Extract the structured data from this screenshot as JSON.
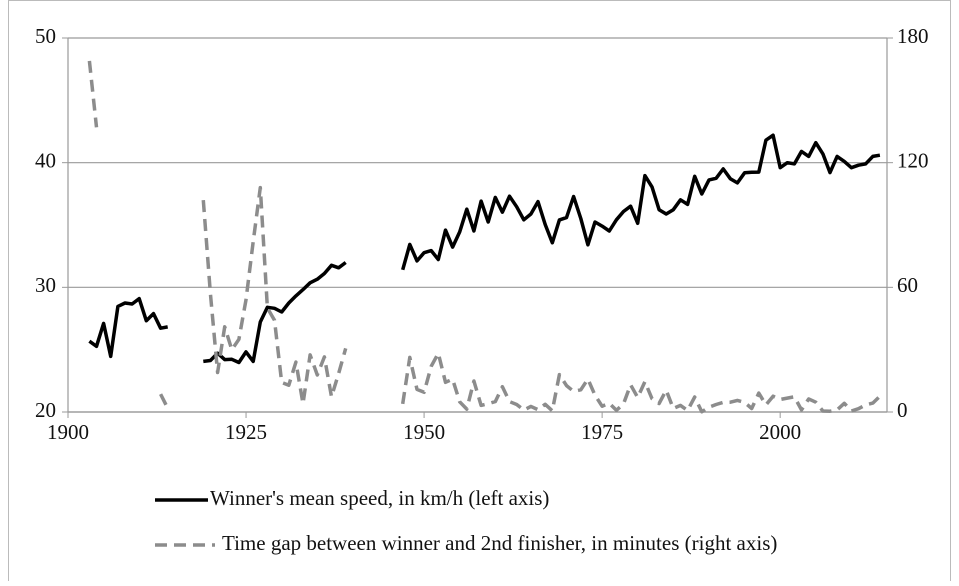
{
  "chart_data": {
    "type": "line",
    "x": [
      1903,
      1904,
      1905,
      1906,
      1907,
      1908,
      1909,
      1910,
      1911,
      1912,
      1913,
      1914,
      1915,
      1916,
      1917,
      1918,
      1919,
      1920,
      1921,
      1922,
      1923,
      1924,
      1925,
      1926,
      1927,
      1928,
      1929,
      1930,
      1931,
      1932,
      1933,
      1934,
      1935,
      1936,
      1937,
      1938,
      1939,
      1940,
      1941,
      1942,
      1943,
      1944,
      1945,
      1946,
      1947,
      1948,
      1949,
      1950,
      1951,
      1952,
      1953,
      1954,
      1955,
      1956,
      1957,
      1958,
      1959,
      1960,
      1961,
      1962,
      1963,
      1964,
      1965,
      1966,
      1967,
      1968,
      1969,
      1970,
      1971,
      1972,
      1973,
      1974,
      1975,
      1976,
      1977,
      1978,
      1979,
      1980,
      1981,
      1982,
      1983,
      1984,
      1985,
      1986,
      1987,
      1988,
      1989,
      1990,
      1991,
      1992,
      1993,
      1994,
      1995,
      1996,
      1997,
      1998,
      1999,
      2000,
      2001,
      2002,
      2003,
      2004,
      2005,
      2006,
      2007,
      2008,
      2009,
      2010,
      2011,
      2012,
      2013,
      2014
    ],
    "series": [
      {
        "name": "Winner's mean speed, in km/h (left axis)",
        "color": "#000000",
        "dash": false,
        "values": [
          25.68,
          25.27,
          27.11,
          24.46,
          28.47,
          28.74,
          28.66,
          29.1,
          27.32,
          27.89,
          26.72,
          26.83,
          null,
          null,
          null,
          null,
          24.06,
          24.13,
          24.72,
          24.2,
          24.23,
          23.97,
          24.82,
          24.06,
          27.22,
          28.4,
          28.32,
          28.02,
          28.74,
          29.31,
          29.82,
          30.36,
          30.65,
          31.11,
          31.77,
          31.57,
          31.99,
          null,
          null,
          null,
          null,
          null,
          null,
          null,
          31.41,
          33.44,
          32.12,
          32.78,
          32.95,
          32.23,
          34.59,
          33.23,
          34.45,
          36.27,
          34.52,
          36.92,
          35.24,
          37.21,
          36.03,
          37.31,
          36.46,
          35.42,
          35.88,
          36.88,
          35.04,
          33.57,
          35.41,
          35.59,
          37.29,
          35.52,
          33.41,
          35.24,
          34.91,
          34.52,
          35.42,
          36.08,
          36.51,
          35.14,
          38.96,
          38.06,
          36.23,
          35.88,
          36.23,
          37.02,
          36.65,
          38.91,
          37.49,
          38.62,
          38.75,
          39.5,
          38.71,
          38.38,
          39.19,
          39.23,
          39.24,
          41.8,
          42.2,
          39.6,
          40.0,
          39.9,
          40.9,
          40.5,
          41.6,
          40.7,
          39.2,
          40.5,
          40.1,
          39.6,
          39.8,
          39.9,
          40.5,
          40.6
        ]
      },
      {
        "name": "Time gap between winner and 2nd finisher, in minutes (right axis)",
        "color": "#8c8c8c",
        "dash": true,
        "axis": "y2",
        "values": [
          169,
          137,
          null,
          null,
          null,
          null,
          null,
          null,
          null,
          null,
          8.6,
          1.8,
          null,
          null,
          null,
          null,
          102,
          57,
          19,
          41,
          30,
          35,
          54,
          82,
          108,
          50,
          44.2,
          14.2,
          12.9,
          24.0,
          4.0,
          27.5,
          17.8,
          26.5,
          7.3,
          18.5,
          30.6,
          null,
          null,
          null,
          null,
          null,
          null,
          null,
          3.9,
          26.3,
          10.9,
          9.5,
          22.0,
          28.3,
          14.3,
          15.8,
          4.9,
          1.4,
          14.9,
          3.2,
          4.0,
          5.0,
          12.2,
          5.0,
          3.6,
          0.9,
          2.7,
          1.1,
          3.7,
          0.6,
          18,
          12.7,
          9.9,
          10.7,
          15.9,
          8.1,
          2.8,
          4.2,
          0.8,
          3.9,
          13.1,
          7.0,
          14.6,
          6.4,
          4.1,
          10.5,
          1.7,
          3.2,
          0.7,
          7.2,
          0.1,
          2.3,
          3.6,
          4.6,
          4.7,
          5.6,
          4.6,
          1.7,
          9.1,
          3.4,
          7.6,
          6.0,
          6.7,
          7.3,
          1.0,
          6.3,
          4.7,
          0.5,
          0.4,
          1.0,
          4.2,
          0.5,
          1.6,
          3.4,
          4.3,
          7.6
        ]
      }
    ],
    "xlim": [
      1900,
      2015
    ],
    "xticks": [
      1900,
      1925,
      1950,
      1975,
      2000
    ],
    "ylim": [
      20,
      50
    ],
    "yticks": [
      20,
      30,
      40,
      50
    ],
    "y2lim": [
      0,
      180
    ],
    "y2ticks": [
      0,
      60,
      120,
      180
    ],
    "grid": true,
    "legend": "bottom"
  }
}
